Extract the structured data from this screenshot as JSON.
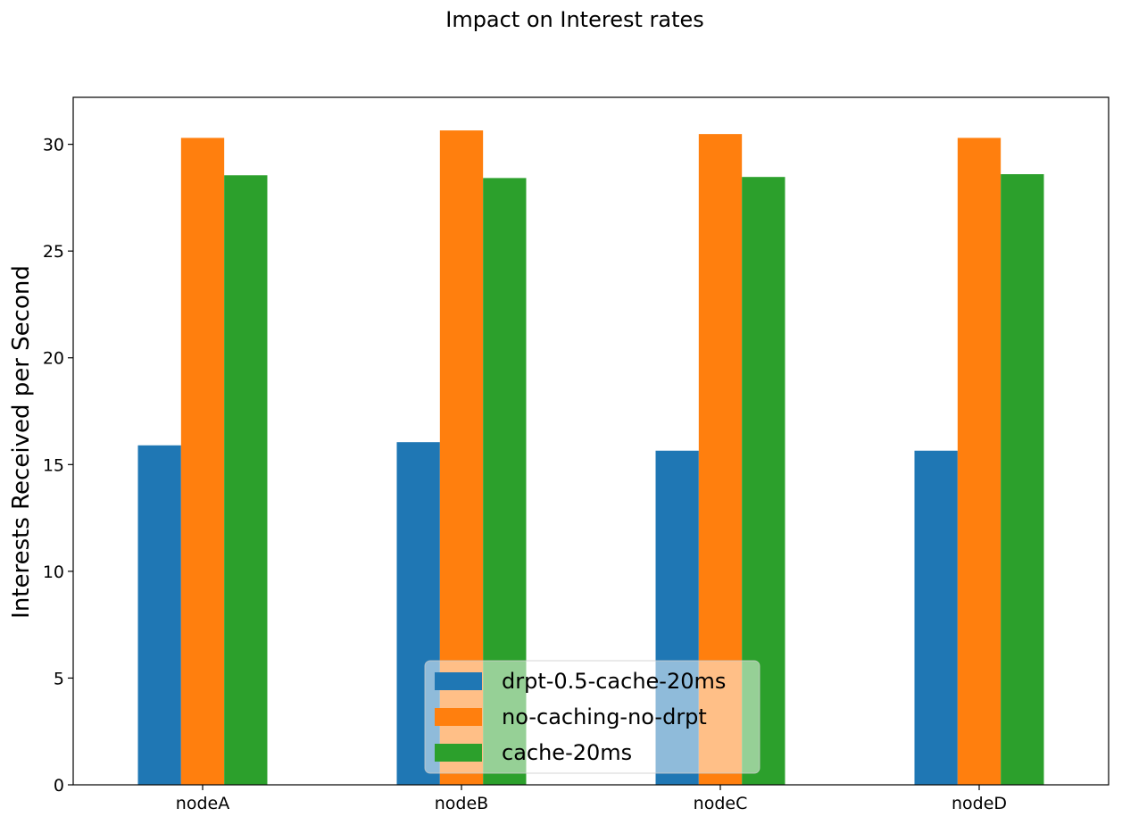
{
  "chart_data": {
    "type": "bar",
    "title": "Impact on Interest rates",
    "xlabel": "",
    "ylabel": "Interests Received per Second",
    "categories": [
      "nodeA",
      "nodeB",
      "nodeC",
      "nodeD"
    ],
    "series": [
      {
        "name": "drpt-0.5-cache-20ms",
        "color": "#1f77b4",
        "values": [
          15.9,
          16.05,
          15.65,
          15.65
        ]
      },
      {
        "name": "no-caching-no-drpt",
        "color": "#ff7f0e",
        "values": [
          30.3,
          30.65,
          30.48,
          30.3
        ]
      },
      {
        "name": "cache-20ms",
        "color": "#2ca02c",
        "values": [
          28.55,
          28.42,
          28.47,
          28.6
        ]
      }
    ],
    "ylim": [
      0,
      32.2
    ],
    "yticks": [
      "0",
      "5",
      "10",
      "15",
      "20",
      "25",
      "30"
    ],
    "grid": false,
    "legend_position": "bottom-center"
  }
}
